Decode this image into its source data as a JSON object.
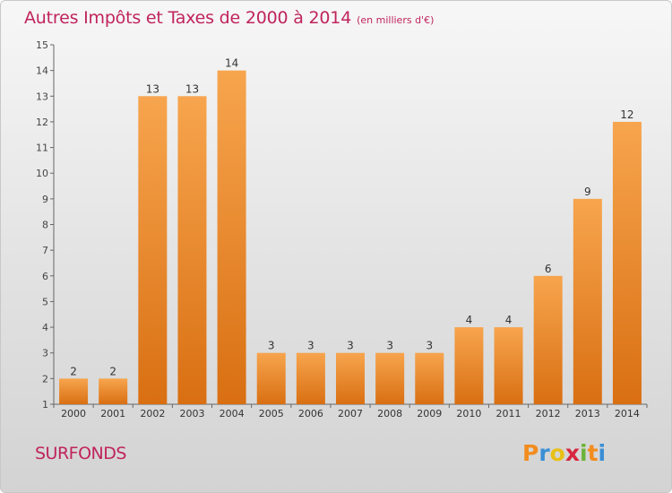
{
  "chart_data": {
    "type": "bar",
    "title": "Autres Impôts et Taxes de 2000 à 2014",
    "subtitle": "(en milliers d'€)",
    "categories": [
      "2000",
      "2001",
      "2002",
      "2003",
      "2004",
      "2005",
      "2006",
      "2007",
      "2008",
      "2009",
      "2010",
      "2011",
      "2012",
      "2013",
      "2014"
    ],
    "values": [
      2,
      2,
      13,
      13,
      14,
      3,
      3,
      3,
      3,
      3,
      4,
      4,
      6,
      9,
      12
    ],
    "ylim": [
      1,
      15
    ],
    "yticks": [
      1,
      2,
      3,
      4,
      5,
      6,
      7,
      8,
      9,
      10,
      11,
      12,
      13,
      14,
      15
    ],
    "grid": false,
    "bar_color": "#f0922e"
  },
  "commune": "SURFONDS",
  "logo": {
    "letters": [
      "P",
      "r",
      "o",
      "x",
      "i",
      "t",
      "i"
    ],
    "colors": [
      "#f28c1e",
      "#3a8fd6",
      "#e8c018",
      "#d7263d",
      "#6bb33a",
      "#f28c1e",
      "#3a8fd6"
    ]
  }
}
